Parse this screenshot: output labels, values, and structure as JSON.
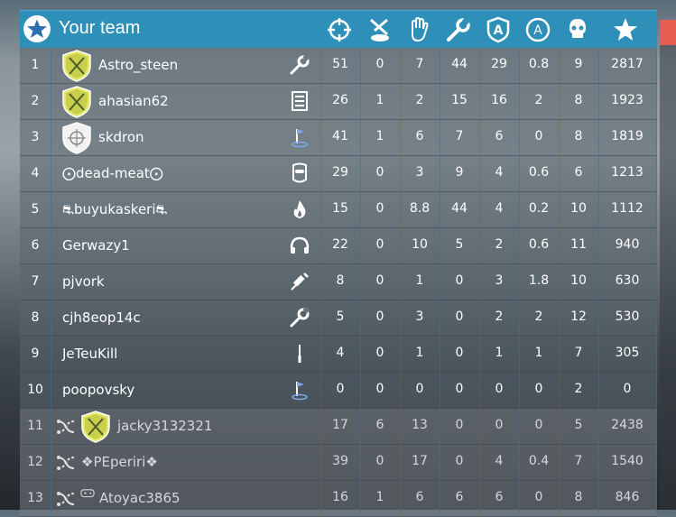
{
  "header": {
    "title": "Your team",
    "columns": [
      {
        "key": "kills",
        "icon": "crosshair-icon"
      },
      {
        "key": "deaths",
        "icon": "fallen-soldier-icon"
      },
      {
        "key": "assists",
        "icon": "hand-icon"
      },
      {
        "key": "repairs",
        "icon": "wrench-icon"
      },
      {
        "key": "shield",
        "icon": "badge-a-shield-icon"
      },
      {
        "key": "circle",
        "icon": "badge-a-circle-icon"
      },
      {
        "key": "skull",
        "icon": "skull-icon"
      },
      {
        "key": "score",
        "icon": "star-icon"
      }
    ]
  },
  "players": [
    {
      "rank": "1",
      "name": "Astro_steen",
      "badge": "swords-yellow",
      "spec": "wrench-icon",
      "stats": [
        "51",
        "0",
        "7",
        "44",
        "29",
        "0.8",
        "9",
        "2817"
      ],
      "team": "mine"
    },
    {
      "rank": "2",
      "name": "ahasian62",
      "badge": "swords-yellow",
      "spec": "list-icon",
      "stats": [
        "26",
        "1",
        "2",
        "15",
        "16",
        "2",
        "8",
        "1923"
      ],
      "team": "mine"
    },
    {
      "rank": "3",
      "name": "skdron",
      "badge": "crosshair-white",
      "spec": "flag-icon",
      "stats": [
        "41",
        "1",
        "6",
        "7",
        "6",
        "0",
        "8",
        "1819"
      ],
      "team": "mine"
    },
    {
      "rank": "4",
      "name": "⨀dead-meat⨀",
      "badge": "",
      "spec": "mask-icon",
      "stats": [
        "29",
        "0",
        "3",
        "9",
        "4",
        "0.6",
        "6",
        "1213"
      ],
      "team": "mine"
    },
    {
      "rank": "5",
      "name": "⛐buyukaskeri⛐",
      "badge": "",
      "spec": "flame-icon",
      "stats": [
        "15",
        "0",
        "8.8",
        "44",
        "4",
        "0.2",
        "10",
        "1112"
      ],
      "team": "mine"
    },
    {
      "rank": "6",
      "name": "Gerwazy1",
      "badge": "",
      "spec": "headphones-icon",
      "stats": [
        "22",
        "0",
        "10",
        "5",
        "2",
        "0.6",
        "11",
        "940"
      ],
      "team": "mine"
    },
    {
      "rank": "7",
      "name": "pjvork",
      "badge": "",
      "spec": "syringe-icon",
      "stats": [
        "8",
        "0",
        "1",
        "0",
        "3",
        "1.8",
        "10",
        "630"
      ],
      "team": "mine"
    },
    {
      "rank": "8",
      "name": "cjh8eop14c",
      "badge": "",
      "spec": "wrench-icon",
      "stats": [
        "5",
        "0",
        "3",
        "0",
        "2",
        "2",
        "12",
        "530"
      ],
      "team": "mine"
    },
    {
      "rank": "9",
      "name": "JeTeuKill",
      "badge": "",
      "spec": "knife-icon",
      "stats": [
        "4",
        "0",
        "1",
        "0",
        "1",
        "1",
        "7",
        "305"
      ],
      "team": "mine"
    },
    {
      "rank": "10",
      "name": "poopovsky",
      "badge": "",
      "spec": "flag-icon",
      "stats": [
        "0",
        "0",
        "0",
        "0",
        "0",
        "0",
        "2",
        "0"
      ],
      "team": "mine"
    },
    {
      "rank": "11",
      "name": "jacky3132321",
      "badge": "swords-yellow",
      "spec": "",
      "stats": [
        "17",
        "6",
        "13",
        "0",
        "0",
        "0",
        "5",
        "2438"
      ],
      "team": "other"
    },
    {
      "rank": "12",
      "name": "❖PEperiri❖",
      "badge": "",
      "spec": "",
      "stats": [
        "39",
        "0",
        "17",
        "0",
        "4",
        "0.4",
        "7",
        "1540"
      ],
      "team": "other"
    },
    {
      "rank": "13",
      "name": "Atoyac3865",
      "badge": "gamepad",
      "spec": "",
      "stats": [
        "16",
        "1",
        "6",
        "6",
        "6",
        "0",
        "8",
        "846"
      ],
      "team": "other"
    }
  ],
  "colors": {
    "header": "#2e8fb8",
    "accent_red": "#e85d52"
  }
}
